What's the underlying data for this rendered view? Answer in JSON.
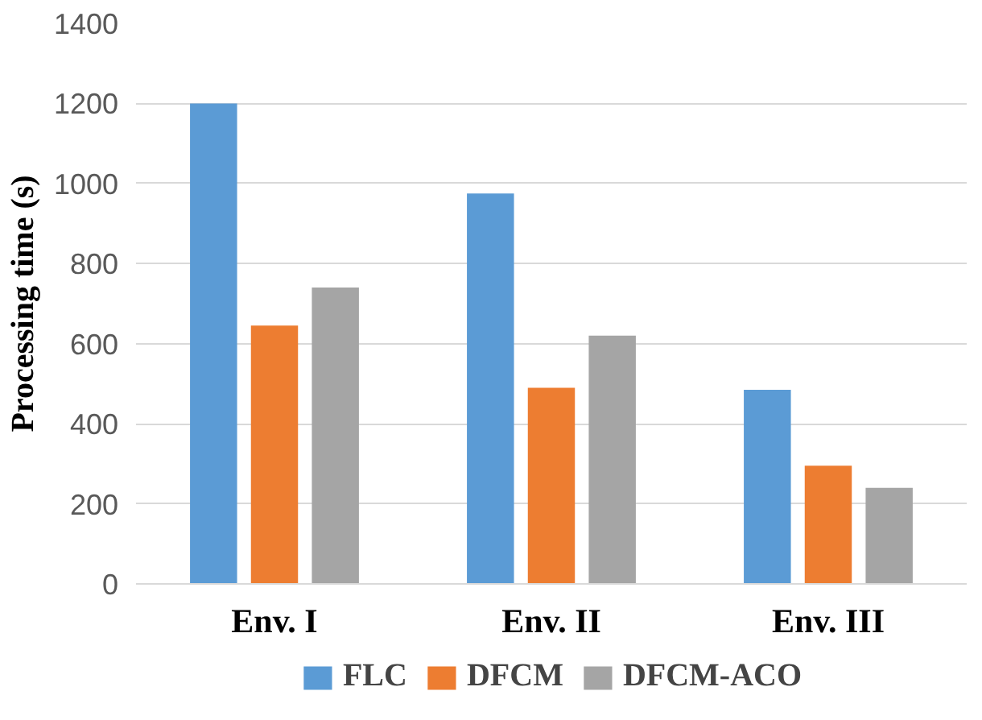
{
  "chart_data": {
    "type": "bar",
    "ylabel": "Processing time (s)",
    "categories": [
      "Env. I",
      "Env. II",
      "Env. III"
    ],
    "series": [
      {
        "name": "FLC",
        "color": "#5b9bd5",
        "values": [
          1200,
          975,
          485
        ]
      },
      {
        "name": "DFCM",
        "color": "#ed7d31",
        "values": [
          645,
          490,
          295
        ]
      },
      {
        "name": "DFCM-ACO",
        "color": "#a5a5a5",
        "values": [
          740,
          620,
          240
        ]
      }
    ],
    "ylim": [
      0,
      1400
    ],
    "yticks": [
      0,
      200,
      400,
      600,
      800,
      1000,
      1200,
      1400
    ],
    "grid": "y",
    "legend": "bottom"
  }
}
